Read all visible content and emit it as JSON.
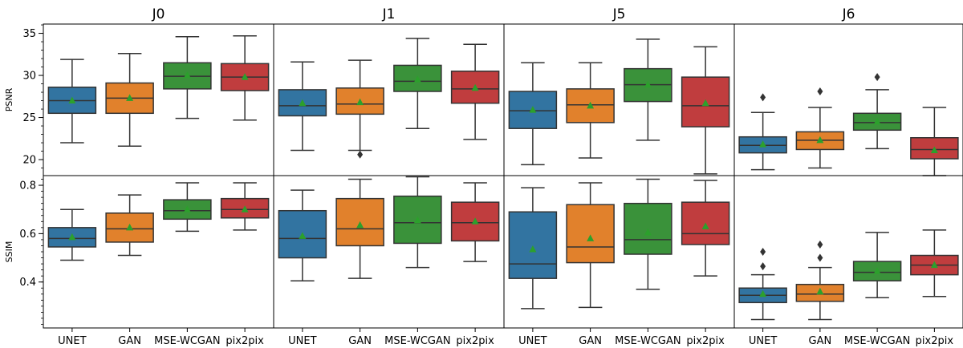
{
  "chart_data": {
    "type": "box",
    "columns": [
      "J0",
      "J1",
      "J5",
      "J6"
    ],
    "categories": [
      "UNET",
      "GAN",
      "MSE-WCGAN",
      "pix2pix"
    ],
    "colors": {
      "UNET": "#3274a1",
      "GAN": "#e1812c",
      "MSE-WCGAN": "#3a923a",
      "pix2pix": "#c03d3e"
    },
    "mean_marker_color": "#2ca02c",
    "mean_marker_shape": "triangle",
    "rows": [
      {
        "ylabel": "PSNR",
        "ylim": [
          18.1,
          36.1
        ],
        "yticks": [
          20,
          25,
          30,
          35
        ],
        "panels": [
          {
            "column": "J0",
            "boxes": [
              {
                "category": "UNET",
                "whislo": 22.0,
                "q1": 25.5,
                "med": 27.0,
                "q3": 28.6,
                "whishi": 31.9,
                "mean": 27.0,
                "fliers": []
              },
              {
                "category": "GAN",
                "whislo": 21.6,
                "q1": 25.5,
                "med": 27.3,
                "q3": 29.1,
                "whishi": 32.6,
                "mean": 27.3,
                "fliers": []
              },
              {
                "category": "MSE-WCGAN",
                "whislo": 24.9,
                "q1": 28.4,
                "med": 29.9,
                "q3": 31.5,
                "whishi": 34.6,
                "mean": 30.0,
                "fliers": []
              },
              {
                "category": "pix2pix",
                "whislo": 24.7,
                "q1": 28.2,
                "med": 29.8,
                "q3": 31.4,
                "whishi": 34.7,
                "mean": 29.8,
                "fliers": []
              }
            ]
          },
          {
            "column": "J1",
            "boxes": [
              {
                "category": "UNET",
                "whislo": 21.1,
                "q1": 25.2,
                "med": 26.4,
                "q3": 28.3,
                "whishi": 31.6,
                "mean": 26.7,
                "fliers": []
              },
              {
                "category": "GAN",
                "whislo": 21.1,
                "q1": 25.4,
                "med": 26.6,
                "q3": 28.5,
                "whishi": 31.8,
                "mean": 26.8,
                "fliers": [
                  20.6
                ]
              },
              {
                "category": "MSE-WCGAN",
                "whislo": 23.7,
                "q1": 28.1,
                "med": 29.3,
                "q3": 31.2,
                "whishi": 34.4,
                "mean": 29.5,
                "fliers": []
              },
              {
                "category": "pix2pix",
                "whislo": 22.4,
                "q1": 26.7,
                "med": 28.4,
                "q3": 30.5,
                "whishi": 33.7,
                "mean": 28.5,
                "fliers": []
              }
            ]
          },
          {
            "column": "J5",
            "boxes": [
              {
                "category": "UNET",
                "whislo": 19.4,
                "q1": 23.7,
                "med": 25.8,
                "q3": 28.1,
                "whishi": 31.5,
                "mean": 25.9,
                "fliers": []
              },
              {
                "category": "GAN",
                "whislo": 20.2,
                "q1": 24.4,
                "med": 26.5,
                "q3": 28.4,
                "whishi": 31.5,
                "mean": 26.4,
                "fliers": []
              },
              {
                "category": "MSE-WCGAN",
                "whislo": 22.3,
                "q1": 26.9,
                "med": 28.9,
                "q3": 30.8,
                "whishi": 34.3,
                "mean": 28.9,
                "fliers": []
              },
              {
                "category": "pix2pix",
                "whislo": 18.3,
                "q1": 23.9,
                "med": 26.4,
                "q3": 29.8,
                "whishi": 33.4,
                "mean": 26.7,
                "fliers": []
              }
            ]
          },
          {
            "column": "J6",
            "boxes": [
              {
                "category": "UNET",
                "whislo": 18.8,
                "q1": 20.8,
                "med": 21.7,
                "q3": 22.7,
                "whishi": 25.6,
                "mean": 21.8,
                "fliers": [
                  27.4
                ]
              },
              {
                "category": "GAN",
                "whislo": 19.0,
                "q1": 21.2,
                "med": 22.3,
                "q3": 23.3,
                "whishi": 26.2,
                "mean": 22.3,
                "fliers": [
                  28.1
                ]
              },
              {
                "category": "MSE-WCGAN",
                "whislo": 21.3,
                "q1": 23.5,
                "med": 24.4,
                "q3": 25.5,
                "whishi": 28.3,
                "mean": 24.5,
                "fliers": [
                  29.8
                ]
              },
              {
                "category": "pix2pix",
                "whislo": 18.1,
                "q1": 20.1,
                "med": 21.2,
                "q3": 22.6,
                "whishi": 26.2,
                "mean": 21.1,
                "fliers": []
              }
            ]
          }
        ]
      },
      {
        "ylabel": "SSIM",
        "ylim": [
          0.21,
          0.84
        ],
        "yticks": [
          0.4,
          0.6,
          0.8
        ],
        "ytick_labels": [
          "0.4",
          "0.6",
          "0.8"
        ],
        "panels": [
          {
            "column": "J0",
            "boxes": [
              {
                "category": "UNET",
                "whislo": 0.49,
                "q1": 0.545,
                "med": 0.58,
                "q3": 0.625,
                "whishi": 0.7,
                "mean": 0.585,
                "fliers": []
              },
              {
                "category": "GAN",
                "whislo": 0.51,
                "q1": 0.565,
                "med": 0.62,
                "q3": 0.685,
                "whishi": 0.76,
                "mean": 0.625,
                "fliers": []
              },
              {
                "category": "MSE-WCGAN",
                "whislo": 0.61,
                "q1": 0.66,
                "med": 0.695,
                "q3": 0.74,
                "whishi": 0.81,
                "mean": 0.7,
                "fliers": []
              },
              {
                "category": "pix2pix",
                "whislo": 0.615,
                "q1": 0.665,
                "med": 0.7,
                "q3": 0.745,
                "whishi": 0.81,
                "mean": 0.7,
                "fliers": []
              }
            ]
          },
          {
            "column": "J1",
            "boxes": [
              {
                "category": "UNET",
                "whislo": 0.405,
                "q1": 0.5,
                "med": 0.58,
                "q3": 0.695,
                "whishi": 0.78,
                "mean": 0.59,
                "fliers": []
              },
              {
                "category": "GAN",
                "whislo": 0.415,
                "q1": 0.55,
                "med": 0.62,
                "q3": 0.745,
                "whishi": 0.825,
                "mean": 0.635,
                "fliers": []
              },
              {
                "category": "MSE-WCGAN",
                "whislo": 0.46,
                "q1": 0.56,
                "med": 0.645,
                "q3": 0.755,
                "whishi": 0.835,
                "mean": 0.655,
                "fliers": []
              },
              {
                "category": "pix2pix",
                "whislo": 0.485,
                "q1": 0.57,
                "med": 0.645,
                "q3": 0.73,
                "whishi": 0.81,
                "mean": 0.65,
                "fliers": []
              }
            ]
          },
          {
            "column": "J5",
            "boxes": [
              {
                "category": "UNET",
                "whislo": 0.29,
                "q1": 0.415,
                "med": 0.475,
                "q3": 0.69,
                "whishi": 0.79,
                "mean": 0.535,
                "fliers": []
              },
              {
                "category": "GAN",
                "whislo": 0.295,
                "q1": 0.48,
                "med": 0.545,
                "q3": 0.72,
                "whishi": 0.81,
                "mean": 0.58,
                "fliers": []
              },
              {
                "category": "MSE-WCGAN",
                "whislo": 0.37,
                "q1": 0.515,
                "med": 0.575,
                "q3": 0.725,
                "whishi": 0.825,
                "mean": 0.605,
                "fliers": []
              },
              {
                "category": "pix2pix",
                "whislo": 0.425,
                "q1": 0.555,
                "med": 0.6,
                "q3": 0.73,
                "whishi": 0.82,
                "mean": 0.63,
                "fliers": []
              }
            ]
          },
          {
            "column": "J6",
            "boxes": [
              {
                "category": "UNET",
                "whislo": 0.245,
                "q1": 0.315,
                "med": 0.345,
                "q3": 0.375,
                "whishi": 0.43,
                "mean": 0.35,
                "fliers": [
                  0.465,
                  0.525
                ]
              },
              {
                "category": "GAN",
                "whislo": 0.245,
                "q1": 0.32,
                "med": 0.35,
                "q3": 0.39,
                "whishi": 0.46,
                "mean": 0.36,
                "fliers": [
                  0.5,
                  0.555
                ]
              },
              {
                "category": "MSE-WCGAN",
                "whislo": 0.335,
                "q1": 0.405,
                "med": 0.44,
                "q3": 0.485,
                "whishi": 0.605,
                "mean": 0.445,
                "fliers": []
              },
              {
                "category": "pix2pix",
                "whislo": 0.34,
                "q1": 0.43,
                "med": 0.47,
                "q3": 0.51,
                "whishi": 0.615,
                "mean": 0.47,
                "fliers": []
              }
            ]
          }
        ]
      }
    ]
  }
}
